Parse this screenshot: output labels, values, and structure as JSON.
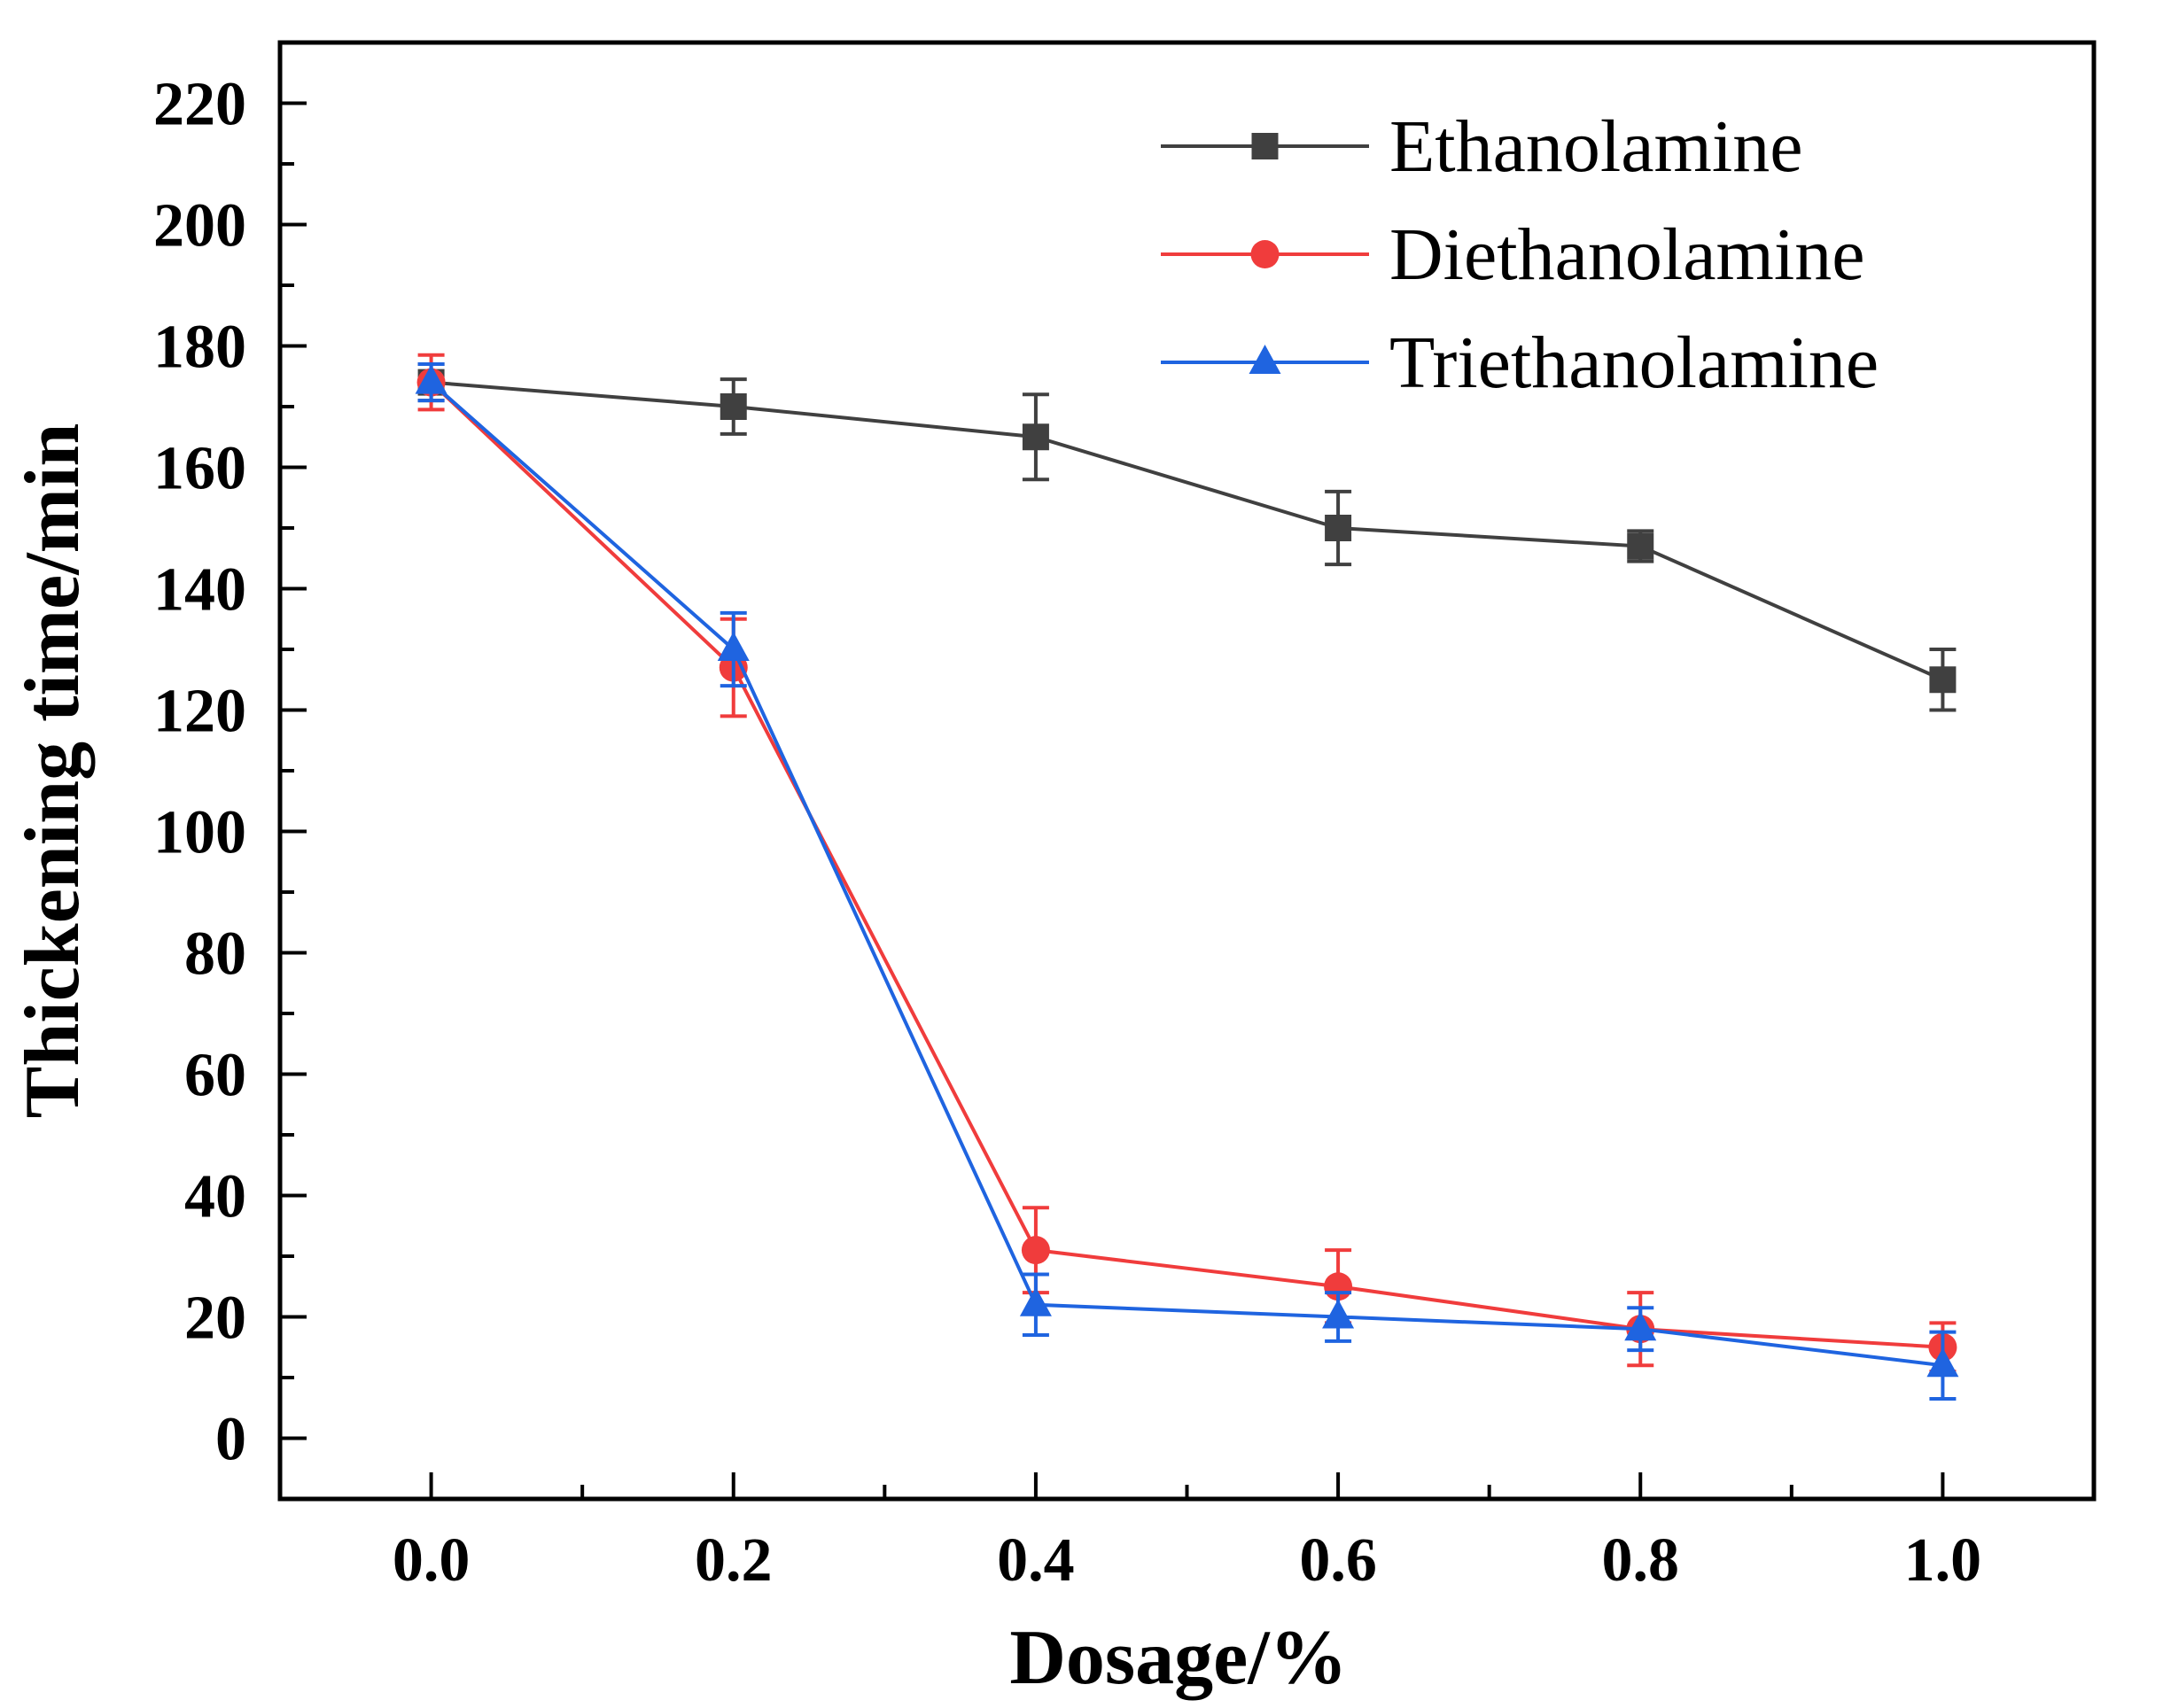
{
  "chart_data": {
    "type": "line",
    "title": "",
    "xlabel": "Dosage/%",
    "ylabel": "Thickening time/min",
    "x": [
      0.0,
      0.2,
      0.4,
      0.6,
      0.8,
      1.0
    ],
    "x_tick_labels": [
      "0.0",
      "0.2",
      "0.4",
      "0.6",
      "0.8",
      "1.0"
    ],
    "y_tick_labels": [
      "0",
      "20",
      "40",
      "60",
      "80",
      "100",
      "120",
      "140",
      "160",
      "180",
      "200",
      "220"
    ],
    "xlim": [
      -0.1,
      1.1
    ],
    "ylim": [
      -10,
      230
    ],
    "grid": false,
    "legend_position": "top-right",
    "series": [
      {
        "name": "Ethanolamine",
        "color": "#404040",
        "marker": "square",
        "values": [
          174,
          170,
          165,
          150,
          147,
          125
        ],
        "errors": [
          3,
          4.5,
          7,
          6,
          2.5,
          5
        ]
      },
      {
        "name": "Diethanolamine",
        "color": "#f03c3c",
        "marker": "circle",
        "values": [
          174,
          127,
          31,
          25,
          18,
          15
        ],
        "errors": [
          4.5,
          8,
          7,
          6,
          6,
          4
        ]
      },
      {
        "name": "Triethanolamine",
        "color": "#1f64e0",
        "marker": "triangle",
        "values": [
          174,
          130,
          22,
          20,
          18,
          12
        ],
        "errors": [
          3,
          6,
          5,
          4,
          3.5,
          5.5
        ]
      }
    ]
  }
}
